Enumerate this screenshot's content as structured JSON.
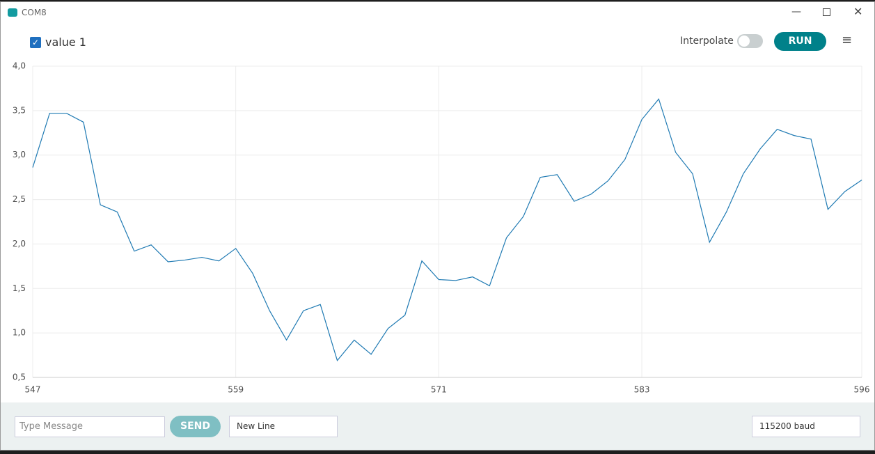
{
  "window": {
    "title": "COM8"
  },
  "toolbar": {
    "interpolate_label": "Interpolate",
    "run_button": "RUN"
  },
  "footer": {
    "message_placeholder": "Type Message",
    "send_button": "SEND",
    "line_ending": "New Line",
    "baud_rate": "115200 baud"
  },
  "chart_data": {
    "type": "line",
    "x": [
      547,
      548,
      549,
      550,
      551,
      552,
      553,
      554,
      555,
      556,
      557,
      558,
      559,
      560,
      561,
      562,
      563,
      564,
      565,
      566,
      567,
      568,
      569,
      570,
      571,
      572,
      573,
      574,
      575,
      576,
      577,
      578,
      579,
      580,
      581,
      582,
      583,
      584,
      585,
      586,
      587,
      588,
      589,
      590,
      591,
      592,
      593,
      594,
      595,
      596
    ],
    "series": [
      {
        "name": "value 1",
        "color": "#1f7ab3",
        "values": [
          2.86,
          3.47,
          3.47,
          3.37,
          2.44,
          2.36,
          1.92,
          1.99,
          1.8,
          1.82,
          1.85,
          1.81,
          1.95,
          1.67,
          1.25,
          0.92,
          1.25,
          1.32,
          0.69,
          0.92,
          0.76,
          1.05,
          1.2,
          1.81,
          1.6,
          1.59,
          1.63,
          1.53,
          2.07,
          2.31,
          2.75,
          2.78,
          2.48,
          2.56,
          2.71,
          2.95,
          3.4,
          3.63,
          3.03,
          2.79,
          2.02,
          2.36,
          2.79,
          3.07,
          3.29,
          3.22,
          3.18,
          2.39,
          2.59,
          2.72
        ]
      }
    ],
    "xlim": [
      547,
      596
    ],
    "xticks": [
      547,
      559,
      571,
      583,
      596
    ],
    "ylim": [
      0.5,
      4.0
    ],
    "yticks": [
      {
        "value": 0.5,
        "label": "0,5"
      },
      {
        "value": 1.0,
        "label": "1,0"
      },
      {
        "value": 1.5,
        "label": "1,5"
      },
      {
        "value": 2.0,
        "label": "2,0"
      },
      {
        "value": 2.5,
        "label": "2,5"
      },
      {
        "value": 3.0,
        "label": "3,0"
      },
      {
        "value": 3.5,
        "label": "3,5"
      },
      {
        "value": 4.0,
        "label": "4,0"
      }
    ],
    "grid": true
  }
}
